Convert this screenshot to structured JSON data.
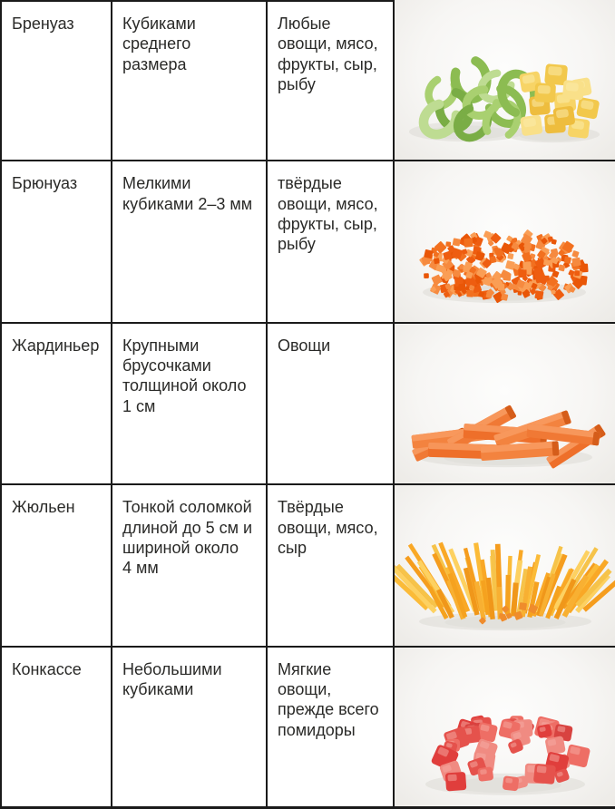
{
  "table": {
    "rows": [
      {
        "name": "Бренуаз",
        "cut": "Кубиками\nсреднего\nразмера",
        "use": "Любые\nовощи, мясо,\nфрукты, сыр,\nрыбу",
        "photo": {
          "name": "celery-slices-and-yellow-cubes-photo",
          "type": "celery_and_cubes",
          "palette": {
            "celery": [
              "#a9d070",
              "#8cbc52",
              "#bedc92",
              "#7aad45"
            ],
            "cubes": [
              "#f7d466",
              "#f2c84c",
              "#f9e089",
              "#eebd3e"
            ],
            "cube_hi": "#fbeba8"
          }
        }
      },
      {
        "name": "Брюнуаз",
        "cut": "Мелкими\nкубиками 2–3 мм",
        "use": "твёрдые\nовощи, мясо,\nфрукты, сыр,\nрыбу",
        "photo": {
          "name": "fine-diced-carrot-pile-photo",
          "type": "brunoise",
          "palette": {
            "dice": [
              "#f2701f",
              "#ee5d10",
              "#f68a3f",
              "#fa9e55",
              "#e95607"
            ]
          }
        }
      },
      {
        "name": "Жардиньер",
        "cut": "Крупными\nбрусочками\nтолщиной около\n1 см",
        "use": "Овощи",
        "photo": {
          "name": "carrot-batons-photo",
          "type": "jardiniere",
          "palette": {
            "body": [
              "#f07935",
              "#ee6f2a",
              "#f3833f"
            ],
            "top": "#f89c61",
            "end": "#d55d1a"
          }
        }
      },
      {
        "name": "Жюльен",
        "cut": "Тонкой соломкой\nдлиной до 5 см и\nшириной около\n4 мм",
        "use": "Твёрдые\nовощи, мясо,\nсыр",
        "photo": {
          "name": "julienne-strips-fan-photo",
          "type": "julienne",
          "palette": {
            "strips": [
              "#fbbb38",
              "#f9a826",
              "#fdd161",
              "#f6c34a",
              "#f59d1e"
            ],
            "front": [
              "#f5a21f",
              "#f0971a",
              "#f8b032"
            ],
            "dice": "#ef8c2c"
          }
        }
      },
      {
        "name": "Конкассе",
        "cut": "Небольшими\nкубиками",
        "use": "Мягкие\nовощи,\nпрежде всего\nпомидоры",
        "photo": {
          "name": "diced-tomato-pile-photo",
          "type": "concasse",
          "palette": {
            "chunks": [
              "#e5524c",
              "#ee6e65",
              "#d84340",
              "#f08b82",
              "#e03e3c"
            ],
            "hi": "#f6aba3"
          }
        }
      }
    ]
  },
  "style": {
    "border_color": "#1a1a1a",
    "text_color": "#2a2a28",
    "shadow": "#dcdbd6",
    "photo_bg_center": "#fdfdfc",
    "photo_bg_edge": "#eceae6"
  }
}
